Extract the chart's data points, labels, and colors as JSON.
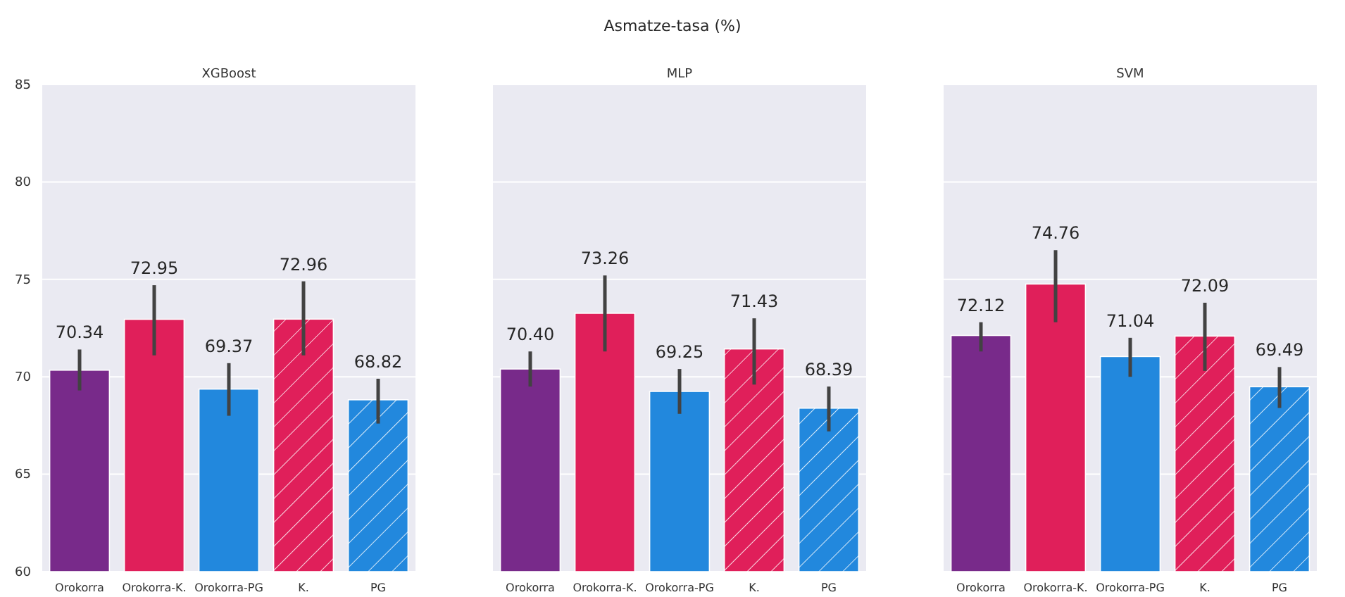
{
  "chart_data": [
    {
      "type": "bar",
      "title": "XGBoost",
      "annotations": [
        "Asmatze-tasa (%)"
      ],
      "categories": [
        "Orokorra",
        "Orokorra-K.",
        "Orokorra-PG",
        "K.",
        "PG"
      ],
      "values": [
        70.34,
        72.95,
        69.37,
        72.96,
        68.82
      ],
      "colors": [
        "#782a8a",
        "#e01f5a",
        "#2288dd",
        "#e01f5a",
        "#2288dd"
      ],
      "errors": [
        [
          69.3,
          71.4
        ],
        [
          71.1,
          74.7
        ],
        [
          68.0,
          70.7
        ],
        [
          71.1,
          74.9
        ],
        [
          67.6,
          69.9
        ]
      ],
      "value_labels": [
        "70.34",
        "72.95",
        "69.37",
        "72.96",
        "68.82"
      ],
      "ylim": [
        60,
        85
      ],
      "yticks": [
        60,
        65,
        70,
        75,
        80,
        85
      ],
      "grid": "y"
    },
    {
      "type": "bar",
      "title": "MLP",
      "categories": [
        "Orokorra",
        "Orokorra-K.",
        "Orokorra-PG",
        "K.",
        "PG"
      ],
      "values": [
        70.4,
        73.26,
        69.25,
        71.43,
        68.39
      ],
      "colors": [
        "#782a8a",
        "#e01f5a",
        "#2288dd",
        "#e01f5a",
        "#2288dd"
      ],
      "errors": [
        [
          69.5,
          71.3
        ],
        [
          71.3,
          75.2
        ],
        [
          68.1,
          70.4
        ],
        [
          69.6,
          73.0
        ],
        [
          67.2,
          69.5
        ]
      ],
      "value_labels": [
        "70.40",
        "73.26",
        "69.25",
        "71.43",
        "68.39"
      ],
      "ylim": [
        60,
        85
      ],
      "yticks": [
        60,
        65,
        70,
        75,
        80,
        85
      ],
      "grid": "y",
      "tick_labels": "x"
    },
    {
      "type": "bar",
      "title": "SVM",
      "categories": [
        "Orokorra",
        "Orokorra-K.",
        "Orokorra-PG",
        "K.",
        "PG"
      ],
      "values": [
        72.12,
        74.76,
        71.04,
        72.09,
        69.49
      ],
      "colors": [
        "#782a8a",
        "#e01f5a",
        "#2288dd",
        "#e01f5a",
        "#2288dd"
      ],
      "errors": [
        [
          71.3,
          72.8
        ],
        [
          72.8,
          76.5
        ],
        [
          70.0,
          72.0
        ],
        [
          70.3,
          73.8
        ],
        [
          68.4,
          70.5
        ]
      ],
      "value_labels": [
        "72.12",
        "74.76",
        "71.04",
        "72.09",
        "69.49"
      ],
      "ylim": [
        60,
        85
      ],
      "yticks": [
        60,
        65,
        70,
        75,
        80,
        85
      ],
      "grid": "y",
      "tick_labels": "x"
    }
  ]
}
